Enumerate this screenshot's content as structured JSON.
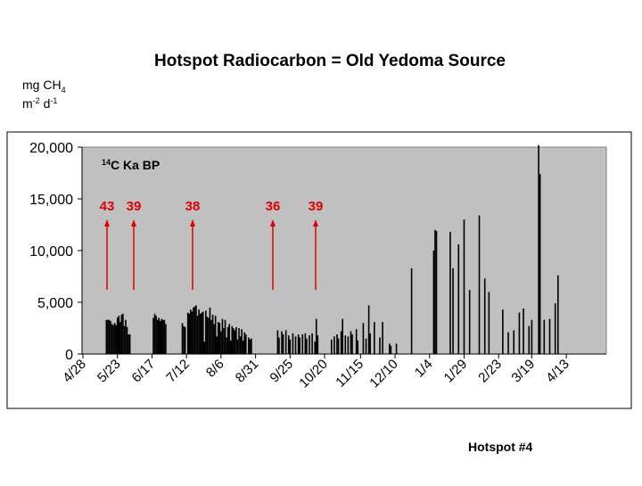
{
  "chart_data": {
    "type": "bar",
    "title": "Hotspot Radiocarbon = Old Yedoma Source",
    "y_label": {
      "main": "mg CH",
      "main_sub": "4",
      "line2": "m",
      "line2_sup": "-2",
      "line2_mid": " d",
      "line2_sup2": "-1"
    },
    "legend_note": {
      "sup": "14",
      "text": "C Ka BP"
    },
    "annotations": [
      "43",
      "39",
      "38",
      "36",
      "39"
    ],
    "footer": "Hotspot #4",
    "color": "#000000",
    "annotation_color": "#e00000",
    "plot_background": "#c0c0c0",
    "xlim": [
      0,
      379
    ],
    "xticks": [
      {
        "value": 0,
        "label": "4/28"
      },
      {
        "value": 25,
        "label": "5/23"
      },
      {
        "value": 50,
        "label": "6/17"
      },
      {
        "value": 75,
        "label": "7/12"
      },
      {
        "value": 100,
        "label": "8/6"
      },
      {
        "value": 125,
        "label": "8/31"
      },
      {
        "value": 150,
        "label": "9/25"
      },
      {
        "value": 175,
        "label": "10/20"
      },
      {
        "value": 201,
        "label": "11/15"
      },
      {
        "value": 226,
        "label": "12/10"
      },
      {
        "value": 251,
        "label": "1/4"
      },
      {
        "value": 276,
        "label": "1/29"
      },
      {
        "value": 301,
        "label": "2/23"
      },
      {
        "value": 325,
        "label": "3/19"
      },
      {
        "value": 350,
        "label": "4/13"
      }
    ],
    "ylim": [
      0,
      20000
    ],
    "yticks": [
      0,
      {
        "value": 5000,
        "label": "5,000"
      },
      {
        "value": 10000,
        "label": "10,000"
      },
      {
        "value": 15000,
        "label": "15,000"
      },
      {
        "value": 20000,
        "label": "20,000"
      }
    ],
    "x": [
      17,
      18,
      19,
      20,
      21,
      22,
      23,
      24,
      25,
      26,
      27,
      28,
      29,
      30,
      31,
      32,
      33,
      34,
      51,
      52,
      53,
      54,
      55,
      56,
      57,
      58,
      59,
      60,
      72,
      73,
      74,
      76,
      77,
      78,
      79,
      80,
      81,
      82,
      83,
      84,
      85,
      86,
      87,
      88,
      89,
      90,
      91,
      92,
      93,
      94,
      95,
      96,
      97,
      98,
      99,
      100,
      101,
      102,
      103,
      104,
      105,
      106,
      107,
      108,
      109,
      110,
      111,
      112,
      113,
      114,
      115,
      116,
      117,
      118,
      120,
      121,
      122,
      141,
      142,
      144,
      145,
      147,
      149,
      150,
      152,
      154,
      156,
      157,
      159,
      161,
      162,
      164,
      166,
      168,
      169,
      170,
      180,
      182,
      184,
      185,
      187,
      188,
      190,
      192,
      194,
      195,
      198,
      199,
      203,
      205,
      207,
      208,
      211,
      215,
      217,
      222,
      223,
      227,
      238,
      254,
      255,
      256,
      266,
      268,
      272,
      276,
      280,
      287,
      291,
      294,
      304,
      308,
      312,
      316,
      319,
      323,
      325,
      330,
      331,
      334,
      338,
      342,
      344
    ],
    "values": [
      3300,
      3300,
      3300,
      3200,
      2900,
      2800,
      3000,
      2800,
      3500,
      3700,
      3100,
      3800,
      3900,
      2700,
      3300,
      2600,
      1900,
      1900,
      3500,
      3900,
      3700,
      3300,
      3500,
      3200,
      3400,
      3300,
      3300,
      2900,
      3000,
      2700,
      2600,
      4000,
      3900,
      4300,
      4100,
      4500,
      4600,
      4700,
      3700,
      4300,
      3900,
      4000,
      4100,
      1200,
      4200,
      3600,
      3500,
      4500,
      3300,
      3800,
      2900,
      3700,
      1700,
      3100,
      3000,
      2200,
      3400,
      2500,
      3300,
      1600,
      2600,
      2900,
      1300,
      2700,
      2500,
      2300,
      2600,
      1400,
      2500,
      1700,
      2400,
      1300,
      2100,
      1900,
      1600,
      1400,
      1500,
      2300,
      1600,
      2200,
      1900,
      2300,
      1800,
      1400,
      2000,
      1700,
      1900,
      1600,
      1900,
      2000,
      1500,
      1800,
      2000,
      1200,
      3400,
      1800,
      1400,
      1700,
      1900,
      1500,
      2200,
      3400,
      1800,
      1700,
      2200,
      1900,
      2400,
      1300,
      3000,
      1500,
      4700,
      2000,
      3100,
      1600,
      3100,
      1000,
      800,
      1000,
      8300,
      10000,
      12000,
      11900,
      11800,
      8300,
      10600,
      13000,
      6200,
      13400,
      7300,
      6000,
      4300,
      2100,
      2300,
      4000,
      4400,
      2700,
      3300,
      20200,
      17400,
      3300,
      3400,
      4900,
      7600
    ]
  }
}
